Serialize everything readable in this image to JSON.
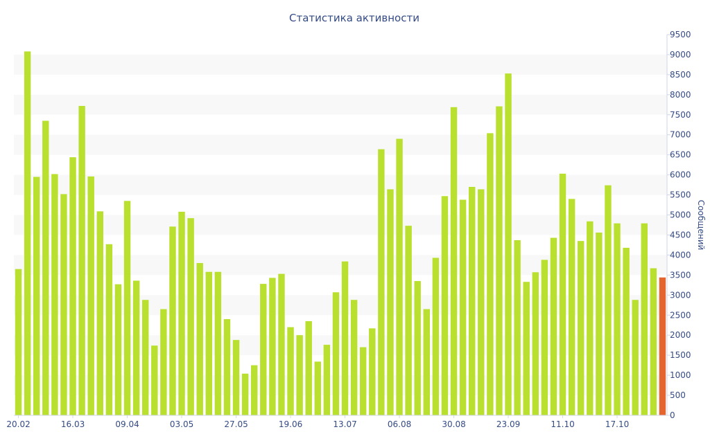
{
  "chart_data": {
    "type": "bar",
    "title": "Статистика активности",
    "xlabel": "",
    "ylabel": "Сообщений",
    "ylim": [
      0,
      9500
    ],
    "y_ticks": [
      0,
      500,
      1000,
      1500,
      2000,
      2500,
      3000,
      3500,
      4000,
      4500,
      5000,
      5500,
      6000,
      6500,
      7000,
      7500,
      8000,
      8500,
      9000,
      9500
    ],
    "y_axis_position": "right",
    "x_tick_labels": [
      {
        "label": "20.02",
        "index": 0
      },
      {
        "label": "16.03",
        "index": 6
      },
      {
        "label": "09.04",
        "index": 12
      },
      {
        "label": "03.05",
        "index": 18
      },
      {
        "label": "27.05",
        "index": 24
      },
      {
        "label": "19.06",
        "index": 30
      },
      {
        "label": "13.07",
        "index": 36
      },
      {
        "label": "06.08",
        "index": 42
      },
      {
        "label": "30.08",
        "index": 48
      },
      {
        "label": "23.09",
        "index": 54
      },
      {
        "label": "11.10",
        "index": 60
      },
      {
        "label": "17.10",
        "index": 66
      }
    ],
    "values": [
      3650,
      9080,
      5950,
      7350,
      6020,
      5520,
      6440,
      7720,
      5960,
      5090,
      4270,
      3270,
      5350,
      3360,
      2880,
      1740,
      2650,
      4710,
      5080,
      4920,
      3800,
      3580,
      3580,
      2400,
      1880,
      1040,
      1250,
      3280,
      3430,
      3530,
      2200,
      2000,
      2350,
      1340,
      1760,
      3070,
      3840,
      2880,
      1700,
      2170,
      6640,
      5640,
      6900,
      4730,
      3350,
      2650,
      3930,
      5470,
      7690,
      5380,
      5700,
      5640,
      7040,
      7710,
      8530,
      4370,
      3330,
      3570,
      3880,
      4430,
      6030,
      5400,
      4350,
      4840,
      4560,
      5740,
      4790,
      4180,
      2880,
      4790,
      3670,
      3440
    ],
    "highlight_index": 71,
    "grid": "horizontal alternating bands",
    "colors": {
      "bar": "#b9e02e",
      "highlight_bar": "#e5652e",
      "band": "#f8f8f8",
      "text": "#334a83",
      "axis": "#cfd6e6"
    }
  }
}
